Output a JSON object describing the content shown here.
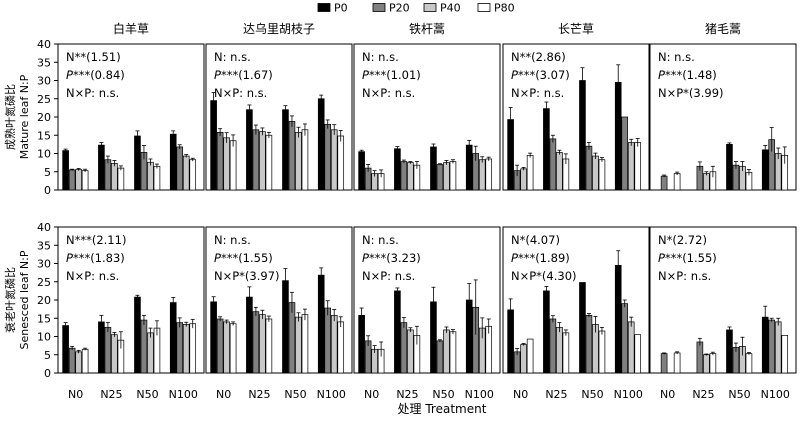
{
  "chart_data": {
    "type": "bar",
    "xlabel": "处理 Treatment",
    "ylim": [
      0,
      40
    ],
    "yticks": [
      0,
      5,
      10,
      15,
      20,
      25,
      30,
      35,
      40
    ],
    "treatments": [
      "N0",
      "N25",
      "N50",
      "N100"
    ],
    "species": [
      "白羊草",
      "达乌里胡枝子",
      "铁杆蒿",
      "长芒草",
      "猪毛蒿"
    ],
    "legend": [
      {
        "name": "P0",
        "color": "#000000"
      },
      {
        "name": "P20",
        "color": "#808080"
      },
      {
        "name": "P40",
        "color": "#c8c8c8"
      },
      {
        "name": "P80",
        "color": "#ffffff"
      }
    ],
    "grid": false,
    "legend_position": "top-center",
    "rows": [
      {
        "ylabel_cn": "成熟叶氮磷比",
        "ylabel_en": "Mature leaf N:P",
        "panels": [
          {
            "stats": [
              {
                "pre": "N**(1.51)",
                "em": "",
                "post": ""
              },
              {
                "pre": "",
                "em": "P",
                "post": "***(0.84)"
              },
              {
                "pre": "N×P: n.s.",
                "em": "",
                "post": ""
              }
            ],
            "values": [
              [
                10.8,
                5.5,
                5.6,
                5.3
              ],
              [
                12.3,
                8.3,
                7.3,
                6.0
              ],
              [
                14.8,
                10.3,
                7.6,
                6.5
              ],
              [
                15.3,
                11.8,
                9.3,
                8.3
              ]
            ],
            "errors": [
              [
                0.4,
                0.2,
                0.3,
                0.4
              ],
              [
                0.7,
                1.0,
                0.8,
                0.6
              ],
              [
                1.4,
                1.9,
                0.9,
                0.6
              ],
              [
                0.9,
                0.6,
                0.4,
                0.4
              ]
            ]
          },
          {
            "stats": [
              {
                "pre": "N: n.s.",
                "em": "",
                "post": ""
              },
              {
                "pre": "",
                "em": "P",
                "post": "***(1.67)"
              },
              {
                "pre": "N×P: n.s.",
                "em": "",
                "post": ""
              }
            ],
            "values": [
              [
                24.5,
                15.8,
                14.3,
                13.5
              ],
              [
                22.0,
                16.5,
                16.0,
                15.0
              ],
              [
                22.0,
                18.8,
                15.8,
                16.5
              ],
              [
                25.0,
                18.0,
                16.5,
                14.8
              ]
            ],
            "errors": [
              [
                2.2,
                1.0,
                1.4,
                1.6
              ],
              [
                1.3,
                1.3,
                1.0,
                0.8
              ],
              [
                1.1,
                1.5,
                1.4,
                1.6
              ],
              [
                1.0,
                1.2,
                1.4,
                1.5
              ]
            ]
          },
          {
            "stats": [
              {
                "pre": "N: n.s.",
                "em": "",
                "post": ""
              },
              {
                "pre": "",
                "em": "P",
                "post": "***(1.01)"
              },
              {
                "pre": "N×P: n.s.",
                "em": "",
                "post": ""
              }
            ],
            "values": [
              [
                10.5,
                6.0,
                4.5,
                4.5
              ],
              [
                11.3,
                7.8,
                7.5,
                6.8
              ],
              [
                11.8,
                7.0,
                7.5,
                7.8
              ],
              [
                12.3,
                10.0,
                8.3,
                8.5
              ]
            ],
            "errors": [
              [
                0.4,
                1.0,
                0.8,
                1.0
              ],
              [
                0.6,
                0.4,
                0.3,
                1.0
              ],
              [
                0.8,
                0.2,
                0.6,
                0.5
              ],
              [
                1.3,
                2.0,
                0.8,
                0.5
              ]
            ]
          },
          {
            "stats": [
              {
                "pre": "N**(2.86)",
                "em": "",
                "post": ""
              },
              {
                "pre": "",
                "em": "P",
                "post": "***(3.07)"
              },
              {
                "pre": "N×P: n.s.",
                "em": "",
                "post": ""
              }
            ],
            "values": [
              [
                19.3,
                5.3,
                5.8,
                9.5
              ],
              [
                22.3,
                14.0,
                10.3,
                8.5
              ],
              [
                30.0,
                12.0,
                9.3,
                8.3
              ],
              [
                29.5,
                20.0,
                13.0,
                13.0
              ]
            ],
            "errors": [
              [
                3.3,
                1.5,
                0.4,
                0.6
              ],
              [
                1.8,
                1.0,
                0.6,
                1.4
              ],
              [
                3.5,
                1.0,
                0.8,
                0.6
              ],
              [
                4.8,
                0.0,
                0.9,
                1.1
              ]
            ]
          },
          {
            "stats": [
              {
                "pre": "N: n.s.",
                "em": "",
                "post": ""
              },
              {
                "pre": "",
                "em": "P",
                "post": "***(1.48)"
              },
              {
                "pre": "N×P*(3.99)",
                "em": "",
                "post": ""
              }
            ],
            "values": [
              [
                null,
                3.8,
                null,
                4.5
              ],
              [
                null,
                6.5,
                4.5,
                5.0
              ],
              [
                12.5,
                6.8,
                6.5,
                4.8
              ],
              [
                11.0,
                13.8,
                10.0,
                9.5
              ]
            ],
            "errors": [
              [
                0,
                0.3,
                0,
                0.4
              ],
              [
                0,
                1.2,
                0.5,
                1.5
              ],
              [
                0.4,
                1.0,
                1.3,
                0.8
              ],
              [
                1.2,
                3.3,
                1.5,
                2.3
              ]
            ]
          }
        ]
      },
      {
        "ylabel_cn": "衰老叶氮磷比",
        "ylabel_en": "Senesced leaf N:P",
        "panels": [
          {
            "stats": [
              {
                "pre": "N***(2.11)",
                "em": "",
                "post": ""
              },
              {
                "pre": "",
                "em": "P",
                "post": "***(1.83)"
              },
              {
                "pre": "N×P: n.s.",
                "em": "",
                "post": ""
              }
            ],
            "values": [
              [
                13.0,
                6.8,
                5.8,
                6.5
              ],
              [
                14.0,
                12.5,
                10.5,
                9.0
              ],
              [
                20.8,
                14.5,
                11.0,
                12.3
              ],
              [
                19.3,
                13.8,
                13.3,
                13.5
              ]
            ],
            "errors": [
              [
                0.8,
                0.5,
                0.4,
                0.3
              ],
              [
                1.8,
                1.3,
                0.6,
                2.3
              ],
              [
                0.5,
                1.3,
                1.3,
                2.0
              ],
              [
                1.4,
                1.3,
                0.6,
                1.2
              ]
            ]
          },
          {
            "stats": [
              {
                "pre": "N: n.s.",
                "em": "",
                "post": ""
              },
              {
                "pre": "",
                "em": "P",
                "post": "***(1.55)"
              },
              {
                "pre": "N×P*(3.97)",
                "em": "",
                "post": ""
              }
            ],
            "values": [
              [
                19.5,
                14.8,
                14.0,
                13.5
              ],
              [
                20.8,
                16.8,
                16.0,
                14.8
              ],
              [
                25.3,
                19.3,
                15.3,
                16.0
              ],
              [
                26.8,
                17.8,
                15.8,
                14.0
              ]
            ],
            "errors": [
              [
                1.4,
                0.6,
                0.5,
                0.5
              ],
              [
                2.8,
                1.2,
                1.2,
                0.8
              ],
              [
                3.3,
                2.8,
                1.2,
                1.5
              ],
              [
                2.0,
                2.0,
                1.6,
                1.4
              ]
            ]
          },
          {
            "stats": [
              {
                "pre": "N: n.s.",
                "em": "",
                "post": ""
              },
              {
                "pre": "",
                "em": "P",
                "post": "***(3.23)"
              },
              {
                "pre": "N×P: n.s.",
                "em": "",
                "post": ""
              }
            ],
            "values": [
              [
                15.8,
                8.8,
                6.5,
                6.5
              ],
              [
                22.5,
                13.8,
                11.8,
                10.3
              ],
              [
                19.5,
                8.8,
                11.8,
                11.3
              ],
              [
                20.0,
                18.0,
                12.3,
                12.8
              ]
            ],
            "errors": [
              [
                2.0,
                1.4,
                1.0,
                2.0
              ],
              [
                0.8,
                1.4,
                0.6,
                2.5
              ],
              [
                4.0,
                0.3,
                0.8,
                0.6
              ],
              [
                4.5,
                7.5,
                2.8,
                2.0
              ]
            ]
          },
          {
            "stats": [
              {
                "pre": "N*(4.07)",
                "em": "",
                "post": ""
              },
              {
                "pre": "",
                "em": "P",
                "post": "***(1.89)"
              },
              {
                "pre": "N×P*(4.30)",
                "em": "",
                "post": ""
              }
            ],
            "values": [
              [
                17.3,
                5.8,
                7.8,
                9.3
              ],
              [
                22.5,
                14.8,
                12.5,
                11.0
              ],
              [
                24.8,
                15.8,
                13.3,
                11.5
              ],
              [
                29.5,
                19.0,
                14.0,
                10.5
              ]
            ],
            "errors": [
              [
                3.0,
                0.9,
                0.3,
                0.0
              ],
              [
                1.2,
                0.9,
                1.3,
                0.8
              ],
              [
                0.0,
                0.5,
                2.2,
                1.0
              ],
              [
                4.0,
                1.0,
                1.3,
                0.0
              ]
            ]
          },
          {
            "stats": [
              {
                "pre": "N*(2.72)",
                "em": "",
                "post": ""
              },
              {
                "pre": "",
                "em": "P",
                "post": "***(1.55)"
              },
              {
                "pre": "N×P: n.s.",
                "em": "",
                "post": ""
              }
            ],
            "values": [
              [
                null,
                5.3,
                null,
                5.5
              ],
              [
                null,
                8.5,
                5.0,
                5.3
              ],
              [
                11.8,
                7.0,
                7.3,
                5.3
              ],
              [
                15.3,
                14.5,
                14.0,
                10.3
              ]
            ],
            "errors": [
              [
                0,
                0.2,
                0,
                0.3
              ],
              [
                0,
                1.0,
                0.2,
                0.4
              ],
              [
                0.8,
                1.2,
                2.5,
                0.3
              ],
              [
                3.0,
                0.5,
                1.0,
                0.0
              ]
            ]
          }
        ]
      }
    ]
  }
}
